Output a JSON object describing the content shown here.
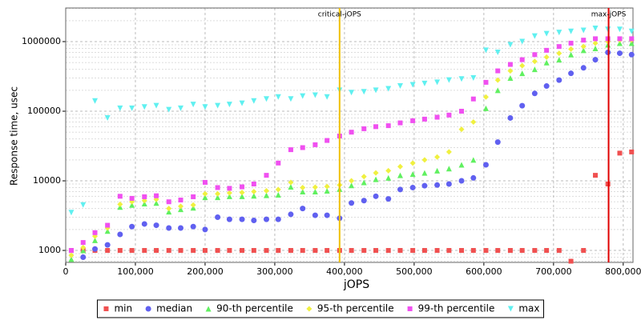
{
  "chart_data": {
    "type": "scatter",
    "x_label": "jOPS",
    "y_label": "Response time, usec",
    "log_y": true,
    "grid": true,
    "xlim": [
      0,
      814000
    ],
    "ylim": [
      673,
      3040000
    ],
    "xticks": [
      0,
      {
        "value": 100000,
        "label": "100,000"
      },
      {
        "value": 200000,
        "label": "200,000"
      },
      {
        "value": 300000,
        "label": "300,000"
      },
      {
        "value": 400000,
        "label": "400,000"
      },
      {
        "value": 500000,
        "label": "500,000"
      },
      {
        "value": 600000,
        "label": "600,000"
      },
      {
        "value": 700000,
        "label": "700,000"
      },
      {
        "value": 800000,
        "label": "800,000"
      }
    ],
    "yticks": [
      1000,
      10000,
      100000,
      1000000
    ],
    "vlines": [
      {
        "label": "critical-jOPS",
        "value": 393000,
        "color": "#f0c000"
      },
      {
        "label": "max-jOPS",
        "value": 779000,
        "color": "#e00000"
      }
    ],
    "x": [
      8000,
      25000,
      42000,
      60000,
      78000,
      95000,
      113000,
      130000,
      148000,
      165000,
      183000,
      200000,
      218000,
      235000,
      253000,
      270000,
      288000,
      305000,
      323000,
      340000,
      358000,
      375000,
      393000,
      410000,
      428000,
      445000,
      463000,
      480000,
      498000,
      515000,
      533000,
      550000,
      568000,
      585000,
      603000,
      620000,
      638000,
      655000,
      673000,
      690000,
      708000,
      725000,
      743000,
      760000,
      778000,
      795000,
      812000
    ],
    "series": [
      {
        "name": "min",
        "color": "#f05050",
        "marker": "square",
        "values": [
          1000,
          1000,
          1000,
          1000,
          1000,
          1000,
          1000,
          1000,
          1000,
          1000,
          1000,
          1000,
          1000,
          1000,
          1000,
          1000,
          1000,
          1000,
          1000,
          1000,
          1000,
          1000,
          1000,
          1000,
          1000,
          1000,
          1000,
          1000,
          1000,
          1000,
          1000,
          1000,
          1000,
          1000,
          1000,
          1000,
          1000,
          1000,
          1000,
          1000,
          1000,
          700,
          1000,
          12000,
          9000,
          25000,
          26000
        ]
      },
      {
        "name": "median",
        "color": "#6060f0",
        "marker": "circle",
        "values": [
          null,
          800,
          1050,
          1200,
          1700,
          2200,
          2400,
          2300,
          2100,
          2100,
          2200,
          2000,
          3000,
          2800,
          2800,
          2700,
          2800,
          2800,
          3300,
          4000,
          3200,
          3200,
          2900,
          4800,
          5200,
          6000,
          5500,
          7500,
          8000,
          8500,
          8700,
          9000,
          10000,
          11000,
          17000,
          36000,
          80000,
          120000,
          180000,
          230000,
          280000,
          350000,
          420000,
          550000,
          700000,
          680000,
          650000
        ]
      },
      {
        "name": "90-th percentile",
        "color": "#60f060",
        "marker": "triangle",
        "values": [
          750,
          1000,
          1400,
          1900,
          4200,
          4500,
          4700,
          4800,
          3600,
          3900,
          4100,
          5800,
          5800,
          6000,
          6000,
          6100,
          6200,
          6300,
          8200,
          7000,
          7000,
          7200,
          7600,
          8600,
          9500,
          10500,
          11000,
          12000,
          12500,
          13000,
          14000,
          15000,
          17000,
          20000,
          110000,
          200000,
          300000,
          350000,
          400000,
          500000,
          550000,
          650000,
          750000,
          800000,
          900000,
          950000,
          950000
        ]
      },
      {
        "name": "95-th percentile",
        "color": "#f0f040",
        "marker": "diamond",
        "values": [
          850,
          1100,
          1600,
          2100,
          4600,
          5000,
          5200,
          5400,
          4000,
          4300,
          4500,
          6500,
          6500,
          6700,
          6800,
          7000,
          7200,
          7500,
          9500,
          8000,
          8100,
          8300,
          8700,
          10000,
          11500,
          13000,
          14000,
          16000,
          18000,
          20000,
          22000,
          26000,
          55000,
          70000,
          160000,
          280000,
          380000,
          450000,
          520000,
          600000,
          680000,
          780000,
          850000,
          950000,
          1000000,
          1050000,
          1050000
        ]
      },
      {
        "name": "99-th percentile",
        "color": "#f050f0",
        "marker": "square",
        "values": [
          1000,
          1300,
          1800,
          2300,
          6000,
          5600,
          5900,
          6100,
          5000,
          5300,
          5900,
          9500,
          8000,
          7800,
          8200,
          9000,
          12000,
          18000,
          28000,
          30000,
          33000,
          38000,
          44000,
          50000,
          56000,
          60000,
          62000,
          68000,
          73000,
          77000,
          82000,
          88000,
          100000,
          150000,
          260000,
          380000,
          470000,
          550000,
          650000,
          750000,
          850000,
          950000,
          1050000,
          1100000,
          1100000,
          1100000,
          1100000
        ]
      },
      {
        "name": "max",
        "color": "#60f0f0",
        "marker": "triangle-down",
        "values": [
          3500,
          4500,
          140000,
          80000,
          110000,
          110000,
          115000,
          120000,
          105000,
          110000,
          125000,
          115000,
          120000,
          125000,
          130000,
          140000,
          150000,
          160000,
          150000,
          165000,
          170000,
          160000,
          200000,
          185000,
          190000,
          200000,
          210000,
          230000,
          240000,
          250000,
          260000,
          280000,
          290000,
          300000,
          750000,
          700000,
          900000,
          1000000,
          1200000,
          1300000,
          1350000,
          1400000,
          1450000,
          1550000,
          1500000,
          1500000,
          1400000
        ]
      }
    ],
    "legend_position": "bottom"
  }
}
